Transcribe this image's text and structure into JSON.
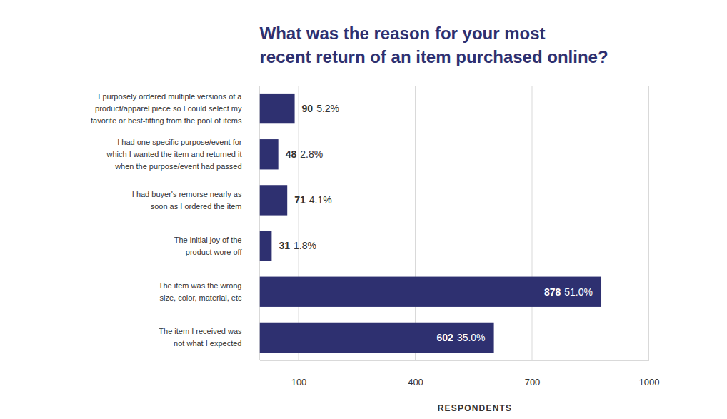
{
  "chart_data": {
    "type": "bar",
    "orientation": "horizontal",
    "title": "What was the reason for your most\nrecent return of an item purchased online?",
    "categories": [
      "I purposely ordered multiple versions of a\nproduct/apparel piece so I could select my\nfavorite or best-fitting from the pool of items",
      "I had one specific purpose/event for\nwhich I wanted the item and returned it\nwhen the purpose/event had passed",
      "I had buyer's remorse nearly as\nsoon as I ordered the item",
      "The initial joy of the\nproduct wore off",
      "The item was the wrong\nsize, color, material, etc",
      "The item I received was\nnot what I expected"
    ],
    "values": [
      90,
      48,
      71,
      31,
      878,
      602
    ],
    "share_labels": [
      "5.2%",
      "2.8%",
      "4.1%",
      "1.8%",
      "51.0%",
      "35.0%"
    ],
    "color": "#2e3070",
    "xlabel": "RESPONDENTS",
    "xlim": [
      0,
      1000
    ],
    "xticks": [
      100,
      400,
      700,
      1000
    ],
    "grid": true,
    "data_labels": true
  }
}
